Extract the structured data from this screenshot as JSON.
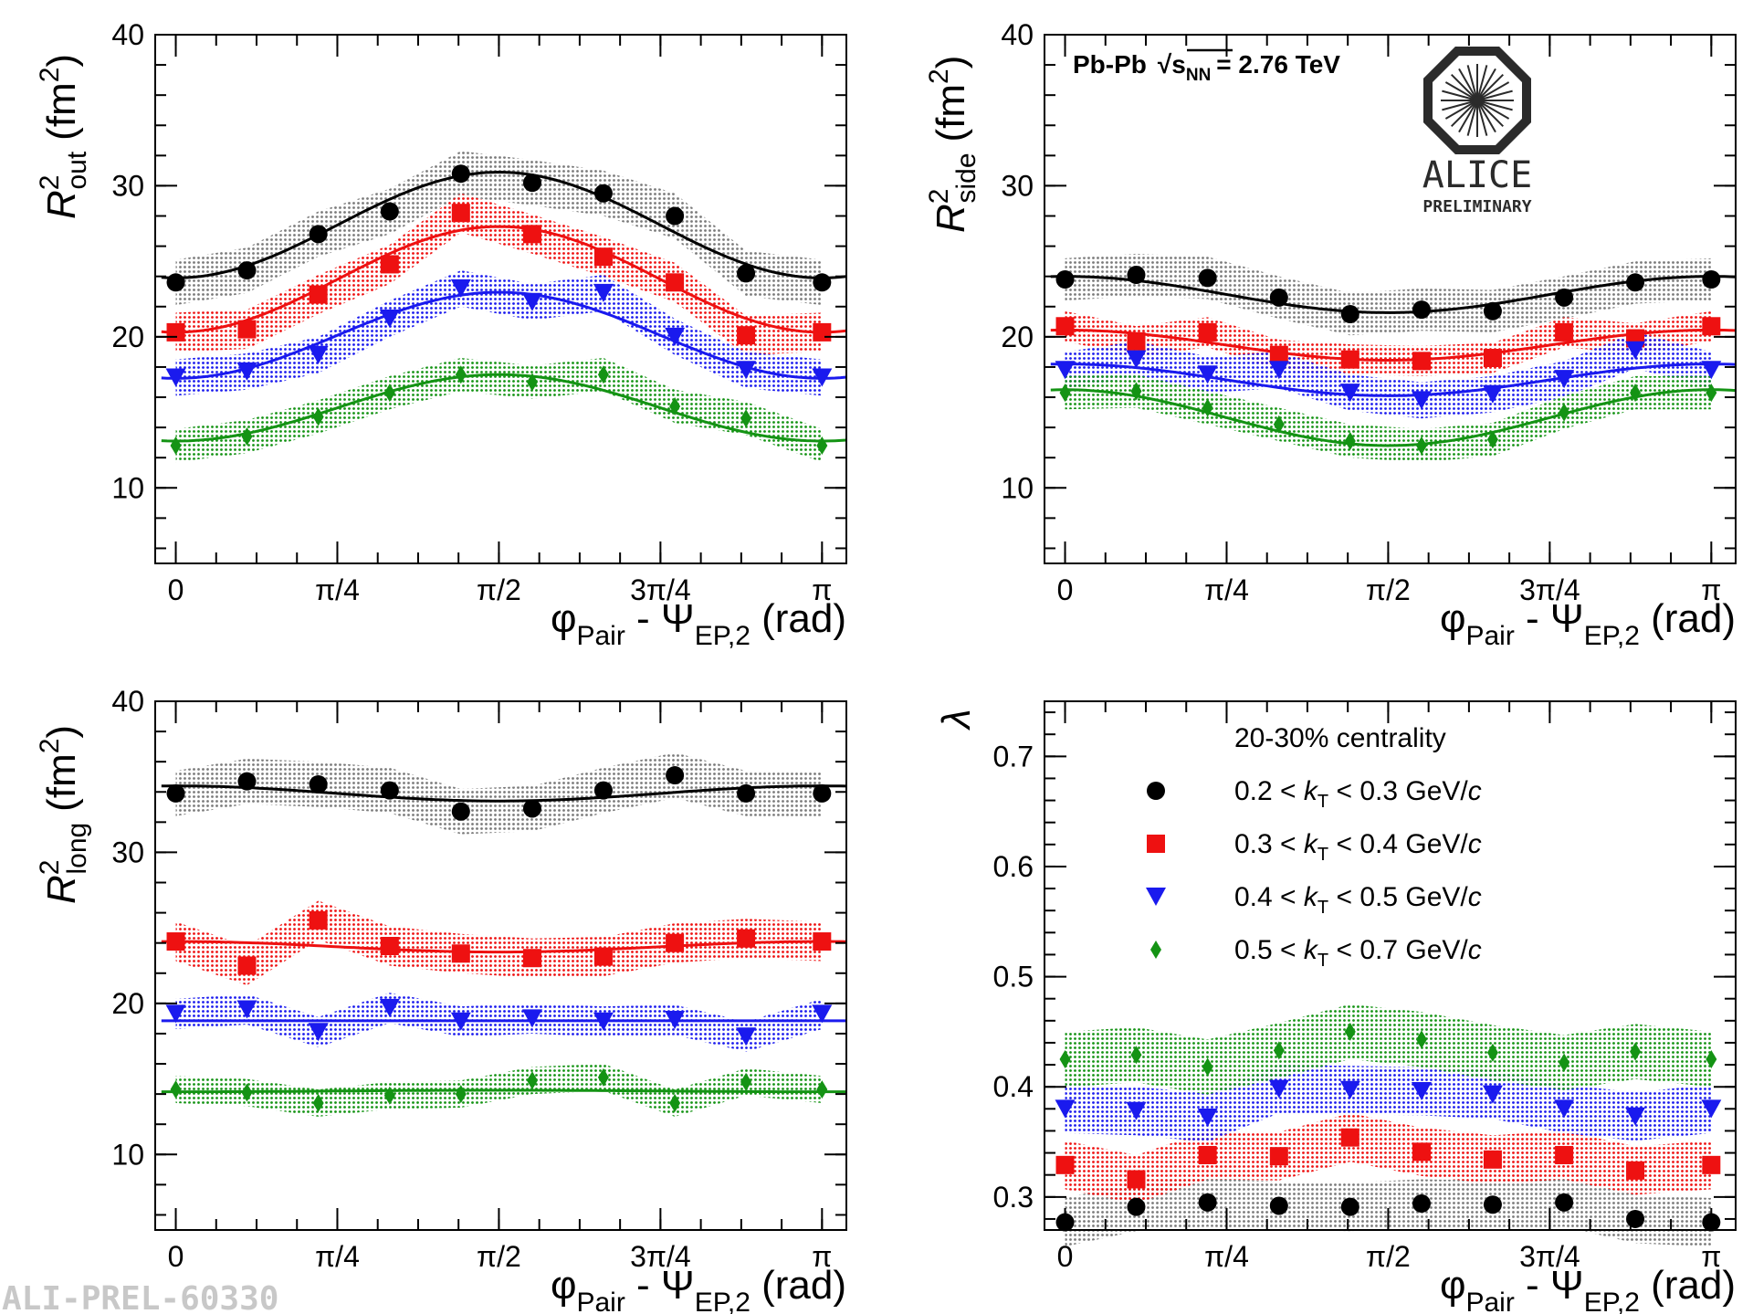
{
  "figure_id": "ALI-PREL-60330",
  "collision_label": {
    "system": "Pb-Pb",
    "sqrt": "s",
    "sub": "NN",
    "energy": "= 2.76 TeV"
  },
  "logo": {
    "name": "ALICE",
    "tag": "PRELIMINARY"
  },
  "legend": {
    "title": "20-30% centrality",
    "entries": [
      {
        "lo": "0.2",
        "hi": "0.3",
        "unit": "GeV/",
        "c": "c"
      },
      {
        "lo": "0.3",
        "hi": "0.4",
        "unit": "GeV/",
        "c": "c"
      },
      {
        "lo": "0.4",
        "hi": "0.5",
        "unit": "GeV/",
        "c": "c"
      },
      {
        "lo": "0.5",
        "hi": "0.7",
        "unit": "GeV/",
        "c": "c"
      }
    ]
  },
  "x_axis": {
    "label_main": "φ",
    "label_sub1": "Pair",
    "label_mid": " - Ψ",
    "label_sub2": "EP,2",
    "label_unit": " (rad)",
    "ticks": [
      "0",
      "π/4",
      "π/2",
      "3π/4",
      "π"
    ]
  },
  "series_style": [
    {
      "name": "0.2 < kT < 0.3 GeV/c",
      "color": "#000000",
      "band": "#7a7a7a",
      "marker": "circle"
    },
    {
      "name": "0.3 < kT < 0.4 GeV/c",
      "color": "#ee1111",
      "band": "#ee1111",
      "marker": "square"
    },
    {
      "name": "0.4 < kT < 0.5 GeV/c",
      "color": "#1a1aee",
      "band": "#1a1aee",
      "marker": "triangle-down"
    },
    {
      "name": "0.5 < kT < 0.7 GeV/c",
      "color": "#149314",
      "band": "#149314",
      "marker": "diamond"
    }
  ],
  "chart_data": [
    {
      "type": "scatter",
      "id": "rout",
      "ylabel_main": "R",
      "ylabel_sup": "2",
      "ylabel_sub": "out",
      "ylabel_unit": "(fm",
      "ylabel_unit_sup": "2",
      "ylabel_close": ")",
      "ylim": [
        5,
        40
      ],
      "yticks": [
        "10",
        "20",
        "30",
        "40"
      ],
      "xlim": [
        -0.1,
        3.26
      ],
      "x": [
        0,
        0.346,
        0.693,
        1.04,
        1.386,
        1.733,
        2.079,
        2.426,
        2.772,
        3.1416
      ],
      "series": [
        {
          "name": "0.2 < kT < 0.3 GeV/c",
          "values": [
            23.6,
            24.4,
            26.8,
            28.3,
            30.8,
            30.2,
            29.5,
            28.0,
            24.2,
            23.6
          ],
          "band": 1.5,
          "fit": [
            27.4,
            3.5
          ]
        },
        {
          "name": "0.3 < kT < 0.4 GeV/c",
          "values": [
            20.3,
            20.5,
            22.8,
            24.8,
            28.2,
            26.8,
            25.3,
            23.6,
            20.1,
            20.3
          ],
          "band": 1.3,
          "fit": [
            23.8,
            3.5
          ]
        },
        {
          "name": "0.4 < kT < 0.5 GeV/c",
          "values": [
            17.3,
            17.7,
            18.8,
            21.2,
            23.2,
            22.3,
            22.9,
            20.0,
            17.8,
            17.3
          ],
          "band": 1.2,
          "fit": [
            20.1,
            2.85
          ]
        },
        {
          "name": "0.5 < kT < 0.7 GeV/c",
          "values": [
            12.8,
            13.4,
            14.7,
            16.3,
            17.5,
            17.0,
            17.5,
            15.4,
            14.6,
            12.8
          ],
          "band": 1.1,
          "fit": [
            15.3,
            2.2
          ]
        }
      ]
    },
    {
      "type": "scatter",
      "id": "rside",
      "ylabel_main": "R",
      "ylabel_sup": "2",
      "ylabel_sub": "side",
      "ylabel_unit": "(fm",
      "ylabel_unit_sup": "2",
      "ylabel_close": ")",
      "ylim": [
        5,
        40
      ],
      "yticks": [
        "10",
        "20",
        "30",
        "40"
      ],
      "xlim": [
        -0.1,
        3.26
      ],
      "x": [
        0,
        0.346,
        0.693,
        1.04,
        1.386,
        1.733,
        2.079,
        2.426,
        2.772,
        3.1416
      ],
      "series": [
        {
          "name": "0.2 < kT < 0.3 GeV/c",
          "values": [
            23.8,
            24.1,
            23.9,
            22.6,
            21.5,
            21.8,
            21.7,
            22.6,
            23.6,
            23.8
          ],
          "band": 1.4,
          "fit": [
            22.8,
            -1.2
          ]
        },
        {
          "name": "0.3 < kT < 0.4 GeV/c",
          "values": [
            20.7,
            19.7,
            20.3,
            18.8,
            18.5,
            18.4,
            18.6,
            20.3,
            19.9,
            20.7
          ],
          "band": 1.0,
          "fit": [
            19.45,
            -1.0
          ]
        },
        {
          "name": "0.4 < kT < 0.5 GeV/c",
          "values": [
            17.8,
            18.5,
            17.5,
            17.8,
            16.3,
            15.8,
            16.2,
            17.2,
            19.1,
            17.8
          ],
          "band": 1.2,
          "fit": [
            17.15,
            -1.05
          ]
        },
        {
          "name": "0.5 < kT < 0.7 GeV/c",
          "values": [
            16.3,
            16.4,
            15.3,
            14.2,
            13.1,
            12.8,
            13.2,
            15.0,
            16.3,
            16.3
          ],
          "band": 1.1,
          "fit": [
            14.65,
            -1.85
          ]
        }
      ]
    },
    {
      "type": "scatter",
      "id": "rlong",
      "ylabel_main": "R",
      "ylabel_sup": "2",
      "ylabel_sub": "long",
      "ylabel_unit": "(fm",
      "ylabel_unit_sup": "2",
      "ylabel_close": ")",
      "ylim": [
        5,
        40
      ],
      "yticks": [
        "10",
        "20",
        "30",
        "40"
      ],
      "xlim": [
        -0.1,
        3.26
      ],
      "x": [
        0,
        0.346,
        0.693,
        1.04,
        1.386,
        1.733,
        2.079,
        2.426,
        2.772,
        3.1416
      ],
      "series": [
        {
          "name": "0.2 < kT < 0.3 GeV/c",
          "values": [
            33.9,
            34.7,
            34.5,
            34.1,
            32.7,
            32.9,
            34.1,
            35.1,
            33.9,
            33.9
          ],
          "band": 1.5,
          "fit": [
            33.9,
            -0.5
          ]
        },
        {
          "name": "0.3 < kT < 0.4 GeV/c",
          "values": [
            24.1,
            22.5,
            25.5,
            23.8,
            23.3,
            23.0,
            23.1,
            24.0,
            24.3,
            24.1
          ],
          "band": 1.3,
          "fit": [
            23.75,
            -0.35
          ]
        },
        {
          "name": "0.4 < kT < 0.5 GeV/c",
          "values": [
            19.3,
            19.6,
            18.1,
            19.7,
            18.8,
            19.0,
            18.8,
            18.9,
            17.8,
            19.3
          ],
          "band": 1.0,
          "fit": [
            18.85,
            0.0
          ]
        },
        {
          "name": "0.5 < kT < 0.7 GeV/c",
          "values": [
            14.3,
            14.1,
            13.4,
            13.9,
            14.0,
            14.9,
            15.1,
            13.4,
            14.8,
            14.3
          ],
          "band": 0.9,
          "fit": [
            14.2,
            0.05
          ]
        }
      ]
    },
    {
      "type": "scatter",
      "id": "lambda",
      "ylabel_main": "λ",
      "ylim": [
        0.27,
        0.75
      ],
      "yticks": [
        "0.3",
        "0.4",
        "0.5",
        "0.6",
        "0.7"
      ],
      "xlim": [
        -0.1,
        3.26
      ],
      "x": [
        0,
        0.346,
        0.693,
        1.04,
        1.386,
        1.733,
        2.079,
        2.426,
        2.772,
        3.1416
      ],
      "series": [
        {
          "name": "0.2 < kT < 0.3 GeV/c",
          "values": [
            0.277,
            0.291,
            0.295,
            0.292,
            0.291,
            0.294,
            0.293,
            0.295,
            0.28,
            0.277
          ],
          "band": 0.022
        },
        {
          "name": "0.3 < kT < 0.4 GeV/c",
          "values": [
            0.329,
            0.316,
            0.338,
            0.337,
            0.354,
            0.341,
            0.334,
            0.338,
            0.324,
            0.329
          ],
          "band": 0.022
        },
        {
          "name": "0.4 < kT < 0.5 GeV/c",
          "values": [
            0.38,
            0.378,
            0.372,
            0.398,
            0.397,
            0.396,
            0.393,
            0.38,
            0.373,
            0.38
          ],
          "band": 0.022
        },
        {
          "name": "0.5 < kT < 0.7 GeV/c",
          "values": [
            0.425,
            0.429,
            0.418,
            0.433,
            0.45,
            0.443,
            0.431,
            0.422,
            0.432,
            0.425
          ],
          "band": 0.025
        }
      ]
    }
  ]
}
